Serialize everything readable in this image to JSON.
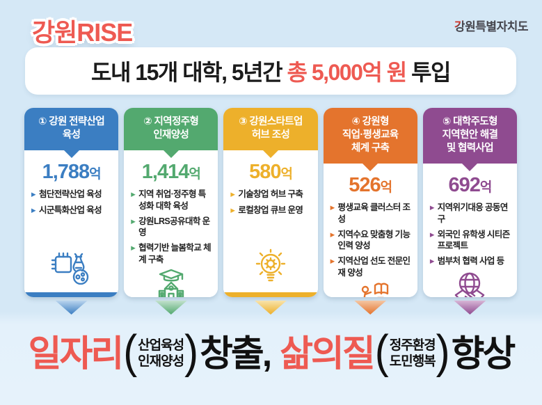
{
  "page": {
    "title": "강원RISE"
  },
  "logo": {
    "first": "강",
    "rest": "원특별자치도"
  },
  "band": {
    "prefix": "도내 15개 대학, 5년간 ",
    "highlight": "총 5,000억 원",
    "suffix": " 투입"
  },
  "cards": [
    {
      "title": "① 강원 전략산업\n육성",
      "amount": "1,788",
      "unit": "억",
      "color": "#3b7ec2",
      "color_light": "#b9d4ed",
      "items": [
        "첨단전략산업 육성",
        "시군특화산업 육성"
      ],
      "icon": "chip-dna-icon"
    },
    {
      "title": "② 지역정주형\n인재양성",
      "amount": "1,414",
      "unit": "억",
      "color": "#53a96f",
      "color_light": "#c2e1cd",
      "items": [
        "지역 취업·정주형 특성화 대학 육성",
        "강원LRS공유대학 운영",
        "협력기반 늘봄학교 체계 구축"
      ],
      "icon": "school-graduation-icon"
    },
    {
      "title": "③ 강원스타트업\n허브 조성",
      "amount": "580",
      "unit": "억",
      "color": "#edb02b",
      "color_light": "#f8e3ab",
      "items": [
        "기술창업 허브 구축",
        "로컬창업 큐브 운영"
      ],
      "icon": "lightbulb-gear-icon"
    },
    {
      "title": "④ 강원형\n직업·평생교육\n체계 구축",
      "amount": "526",
      "unit": "억",
      "color": "#e4742d",
      "color_light": "#f4c6a4",
      "items": [
        "평생교육 클러스터 조성",
        "지역수요 맞춤형 기능인력 양성",
        "지역산업 선도 전문인재 양성"
      ],
      "icon": "career-stairs-book-icon"
    },
    {
      "title": "⑤ 대학주도형\n지역현안 해결\n및 협력사업",
      "amount": "692",
      "unit": "억",
      "color": "#8f4b90",
      "color_light": "#d7b6d6",
      "items": [
        "지역위기대응 공동연구",
        "외국인 유학생 시티즌 프로젝트",
        "범부처 협력 사업 등"
      ],
      "icon": "globe-handshake-icon"
    }
  ],
  "footer": {
    "word1": "일자리",
    "paren_open": "(",
    "paren1": {
      "line1": "산업육성",
      "line2": "인재양성"
    },
    "paren_close": ")",
    "word2": "창출,",
    "word3": "삶의질",
    "paren2": {
      "line1": "정주환경",
      "line2": "도민행복"
    },
    "word4": "향상"
  },
  "colors": {
    "background_top": "#d5e8f6",
    "background_bottom": "#e6f2fb",
    "accent_red": "#ee5a52",
    "text_dark": "#1b1b1b",
    "logo_dark": "#45454d"
  }
}
